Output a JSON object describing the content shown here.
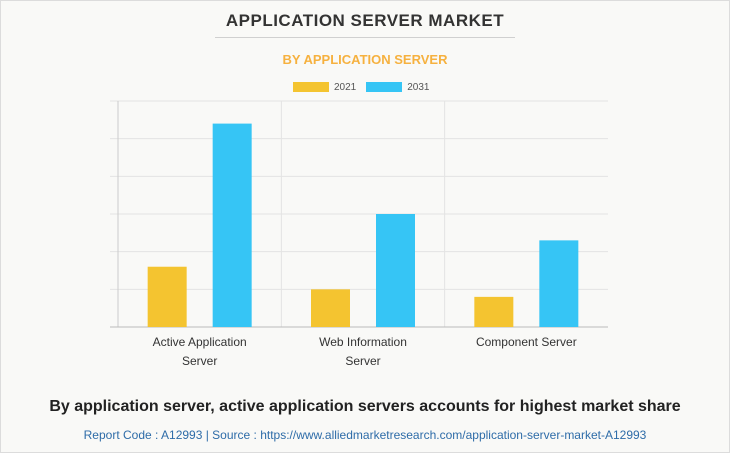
{
  "title": "APPLICATION SERVER MARKET",
  "subtitle": "BY APPLICATION SERVER",
  "colors": {
    "series_2021": "#f4c430",
    "series_2031": "#36c5f5",
    "subtitle": "#f6b13f",
    "footer": "#2e6ca8"
  },
  "legend": [
    {
      "label": "2021",
      "color": "#f4c430"
    },
    {
      "label": "2031",
      "color": "#36c5f5"
    }
  ],
  "chart_data": {
    "type": "bar",
    "categories": [
      [
        "Active Application",
        "Server"
      ],
      [
        "Web Information",
        "Server"
      ],
      [
        "Component Server"
      ]
    ],
    "series": [
      {
        "name": "2021",
        "values": [
          16,
          10,
          8
        ]
      },
      {
        "name": "2031",
        "values": [
          54,
          30,
          23
        ]
      }
    ],
    "ylim": [
      0,
      60
    ],
    "grid": true,
    "legend_position": "top-center"
  },
  "caption": "By application server, active application servers accounts for highest market share",
  "footer": "Report Code : A12993  |  Source : https://www.alliedmarketresearch.com/application-server-market-A12993"
}
